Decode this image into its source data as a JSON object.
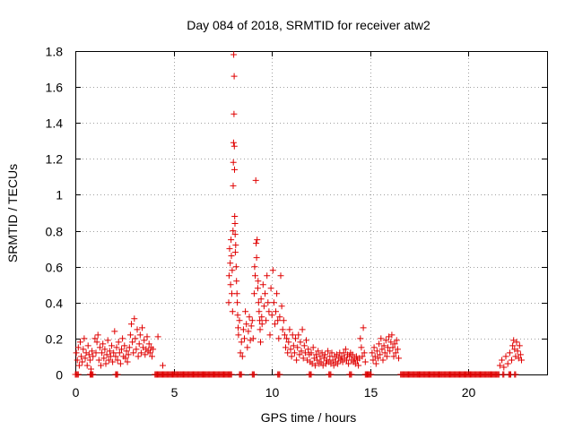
{
  "chart_data": {
    "type": "scatter",
    "title": "Day 084 of 2018, SRMTID for receiver atw2",
    "xlabel": "GPS time / hours",
    "ylabel": "SRMTID / TECUs",
    "xlim": [
      0,
      24
    ],
    "ylim": [
      0,
      1.8
    ],
    "xticks": [
      0,
      5,
      10,
      15,
      20
    ],
    "yticks": [
      0,
      0.2,
      0.4,
      0.6,
      0.8,
      1,
      1.2,
      1.4,
      1.6,
      1.8
    ],
    "ytick_labels": [
      "0",
      "0.2",
      "0.4",
      "0.6",
      "0.8",
      "1",
      "1.2",
      "1.4",
      "1.6",
      "1.8"
    ],
    "grid": true,
    "marker": "+",
    "color": "#e00000",
    "series": [
      {
        "name": "atw2",
        "points": [
          [
            0.05,
            0.12
          ],
          [
            0.1,
            0.08
          ],
          [
            0.15,
            0.15
          ],
          [
            0.2,
            0.05
          ],
          [
            0.25,
            0.18
          ],
          [
            0.3,
            0.1
          ],
          [
            0.35,
            0.07
          ],
          [
            0.4,
            0.14
          ],
          [
            0.45,
            0.2
          ],
          [
            0.5,
            0.09
          ],
          [
            0.55,
            0.12
          ],
          [
            0.6,
            0.05
          ],
          [
            0.65,
            0.16
          ],
          [
            0.7,
            0.11
          ],
          [
            0.75,
            0.08
          ],
          [
            0.8,
            0.03
          ],
          [
            0.85,
            0.13
          ],
          [
            0.9,
            0.1
          ],
          [
            1.0,
            0.2
          ],
          [
            1.05,
            0.12
          ],
          [
            1.1,
            0.18
          ],
          [
            1.15,
            0.22
          ],
          [
            1.2,
            0.08
          ],
          [
            1.25,
            0.15
          ],
          [
            1.3,
            0.05
          ],
          [
            1.35,
            0.12
          ],
          [
            1.4,
            0.17
          ],
          [
            1.45,
            0.09
          ],
          [
            1.5,
            0.14
          ],
          [
            1.55,
            0.06
          ],
          [
            1.6,
            0.11
          ],
          [
            1.65,
            0.19
          ],
          [
            1.7,
            0.08
          ],
          [
            1.75,
            0.13
          ],
          [
            1.8,
            0.1
          ],
          [
            1.85,
            0.16
          ],
          [
            1.9,
            0.07
          ],
          [
            1.95,
            0.12
          ],
          [
            2.0,
            0.24
          ],
          [
            2.05,
            0.1
          ],
          [
            2.1,
            0.15
          ],
          [
            2.15,
            0.08
          ],
          [
            2.2,
            0.18
          ],
          [
            2.25,
            0.12
          ],
          [
            2.3,
            0.06
          ],
          [
            2.35,
            0.14
          ],
          [
            2.4,
            0.2
          ],
          [
            2.45,
            0.1
          ],
          [
            2.5,
            0.16
          ],
          [
            2.55,
            0.09
          ],
          [
            2.6,
            0.13
          ],
          [
            2.65,
            0.07
          ],
          [
            2.7,
            0.11
          ],
          [
            2.75,
            0.15
          ],
          [
            2.8,
            0.22
          ],
          [
            2.85,
            0.28
          ],
          [
            2.9,
            0.18
          ],
          [
            2.95,
            0.12
          ],
          [
            3.0,
            0.31
          ],
          [
            3.05,
            0.2
          ],
          [
            3.1,
            0.14
          ],
          [
            3.15,
            0.25
          ],
          [
            3.2,
            0.1
          ],
          [
            3.25,
            0.17
          ],
          [
            3.3,
            0.22
          ],
          [
            3.35,
            0.12
          ],
          [
            3.4,
            0.26
          ],
          [
            3.45,
            0.15
          ],
          [
            3.5,
            0.19
          ],
          [
            3.55,
            0.11
          ],
          [
            3.6,
            0.14
          ],
          [
            3.65,
            0.21
          ],
          [
            3.7,
            0.13
          ],
          [
            3.75,
            0.17
          ],
          [
            3.8,
            0.12
          ],
          [
            3.85,
            0.15
          ],
          [
            3.9,
            0.1
          ],
          [
            3.95,
            0.14
          ],
          [
            4.2,
            0.21
          ],
          [
            4.45,
            0.05
          ],
          [
            7.8,
            0.4
          ],
          [
            7.82,
            0.55
          ],
          [
            7.85,
            0.7
          ],
          [
            7.88,
            0.62
          ],
          [
            7.9,
            0.5
          ],
          [
            7.92,
            0.75
          ],
          [
            7.94,
            0.66
          ],
          [
            7.96,
            0.45
          ],
          [
            7.98,
            0.58
          ],
          [
            8.0,
            0.35
          ],
          [
            8.02,
            0.8
          ],
          [
            8.03,
            1.05
          ],
          [
            8.04,
            1.18
          ],
          [
            8.05,
            1.29
          ],
          [
            8.06,
            1.78
          ],
          [
            8.07,
            1.45
          ],
          [
            8.08,
            1.66
          ],
          [
            8.09,
            1.27
          ],
          [
            8.1,
            1.14
          ],
          [
            8.11,
            0.88
          ],
          [
            8.12,
            0.84
          ],
          [
            8.13,
            0.78
          ],
          [
            8.14,
            0.68
          ],
          [
            8.16,
            0.72
          ],
          [
            8.18,
            0.6
          ],
          [
            8.2,
            0.52
          ],
          [
            8.22,
            0.45
          ],
          [
            8.24,
            0.4
          ],
          [
            8.26,
            0.33
          ],
          [
            8.28,
            0.26
          ],
          [
            8.3,
            0.22
          ],
          [
            8.35,
            0.3
          ],
          [
            8.4,
            0.12
          ],
          [
            8.45,
            0.18
          ],
          [
            8.5,
            0.1
          ],
          [
            8.55,
            0.25
          ],
          [
            8.6,
            0.2
          ],
          [
            8.65,
            0.35
          ],
          [
            8.7,
            0.28
          ],
          [
            8.75,
            0.15
          ],
          [
            8.8,
            0.24
          ],
          [
            8.85,
            0.32
          ],
          [
            8.9,
            0.19
          ],
          [
            8.95,
            0.27
          ],
          [
            9.0,
            0.3
          ],
          [
            9.05,
            0.2
          ],
          [
            9.1,
            0.45
          ],
          [
            9.12,
            0.6
          ],
          [
            9.15,
            0.55
          ],
          [
            9.18,
            1.08
          ],
          [
            9.2,
            0.73
          ],
          [
            9.22,
            0.65
          ],
          [
            9.25,
            0.75
          ],
          [
            9.28,
            0.48
          ],
          [
            9.3,
            0.52
          ],
          [
            9.32,
            0.4
          ],
          [
            9.35,
            0.35
          ],
          [
            9.38,
            0.3
          ],
          [
            9.4,
            0.25
          ],
          [
            9.42,
            0.18
          ],
          [
            9.45,
            0.42
          ],
          [
            9.48,
            0.32
          ],
          [
            9.5,
            0.28
          ],
          [
            9.55,
            0.5
          ],
          [
            9.6,
            0.38
          ],
          [
            9.65,
            0.45
          ],
          [
            9.7,
            0.3
          ],
          [
            9.75,
            0.55
          ],
          [
            9.8,
            0.4
          ],
          [
            9.85,
            0.35
          ],
          [
            9.9,
            0.22
          ],
          [
            9.95,
            0.48
          ],
          [
            10.0,
            0.33
          ],
          [
            10.05,
            0.58
          ],
          [
            10.1,
            0.4
          ],
          [
            10.15,
            0.28
          ],
          [
            10.2,
            0.35
          ],
          [
            10.25,
            0.45
          ],
          [
            10.3,
            0.3
          ],
          [
            10.35,
            0.2
          ],
          [
            10.4,
            0.32
          ],
          [
            10.45,
            0.55
          ],
          [
            10.5,
            0.38
          ],
          [
            10.55,
            0.25
          ],
          [
            10.6,
            0.3
          ],
          [
            10.65,
            0.22
          ],
          [
            10.7,
            0.15
          ],
          [
            10.75,
            0.2
          ],
          [
            10.8,
            0.12
          ],
          [
            10.85,
            0.18
          ],
          [
            10.9,
            0.25
          ],
          [
            10.95,
            0.14
          ],
          [
            11.0,
            0.1
          ],
          [
            11.05,
            0.22
          ],
          [
            11.1,
            0.16
          ],
          [
            11.15,
            0.12
          ],
          [
            11.2,
            0.2
          ],
          [
            11.25,
            0.08
          ],
          [
            11.3,
            0.15
          ],
          [
            11.35,
            0.22
          ],
          [
            11.4,
            0.11
          ],
          [
            11.45,
            0.18
          ],
          [
            11.5,
            0.13
          ],
          [
            11.55,
            0.25
          ],
          [
            11.6,
            0.09
          ],
          [
            11.65,
            0.16
          ],
          [
            11.7,
            0.12
          ],
          [
            11.75,
            0.19
          ],
          [
            11.8,
            0.08
          ],
          [
            11.85,
            0.14
          ],
          [
            11.9,
            0.11
          ],
          [
            11.95,
            0.07
          ],
          [
            12.0,
            0.12
          ],
          [
            12.05,
            0.06
          ],
          [
            12.1,
            0.15
          ],
          [
            12.15,
            0.09
          ],
          [
            12.2,
            0.05
          ],
          [
            12.25,
            0.11
          ],
          [
            12.3,
            0.08
          ],
          [
            12.35,
            0.13
          ],
          [
            12.4,
            0.06
          ],
          [
            12.45,
            0.1
          ],
          [
            12.5,
            0.07
          ],
          [
            12.55,
            0.12
          ],
          [
            12.6,
            0.05
          ],
          [
            12.65,
            0.09
          ],
          [
            12.7,
            0.11
          ],
          [
            12.75,
            0.06
          ],
          [
            12.8,
            0.08
          ],
          [
            12.85,
            0.13
          ],
          [
            12.9,
            0.07
          ],
          [
            12.95,
            0.1
          ],
          [
            13.0,
            0.06
          ],
          [
            13.05,
            0.12
          ],
          [
            13.1,
            0.08
          ],
          [
            13.15,
            0.05
          ],
          [
            13.2,
            0.1
          ],
          [
            13.25,
            0.07
          ],
          [
            13.3,
            0.11
          ],
          [
            13.35,
            0.06
          ],
          [
            13.4,
            0.09
          ],
          [
            13.45,
            0.12
          ],
          [
            13.5,
            0.08
          ],
          [
            13.55,
            0.1
          ],
          [
            13.6,
            0.07
          ],
          [
            13.65,
            0.12
          ],
          [
            13.7,
            0.09
          ],
          [
            13.75,
            0.14
          ],
          [
            13.8,
            0.08
          ],
          [
            13.85,
            0.11
          ],
          [
            13.9,
            0.06
          ],
          [
            13.95,
            0.1
          ],
          [
            14.0,
            0.12
          ],
          [
            14.05,
            0.08
          ],
          [
            14.1,
            0.11
          ],
          [
            14.15,
            0.07
          ],
          [
            14.2,
            0.09
          ],
          [
            14.25,
            0.06
          ],
          [
            14.3,
            0.1
          ],
          [
            14.35,
            0.08
          ],
          [
            14.4,
            0.05
          ],
          [
            14.45,
            0.09
          ],
          [
            14.5,
            0.2
          ],
          [
            14.55,
            0.15
          ],
          [
            14.6,
            0.1
          ],
          [
            14.65,
            0.26
          ],
          [
            14.7,
            0.12
          ],
          [
            14.75,
            0.07
          ],
          [
            15.1,
            0.12
          ],
          [
            15.15,
            0.08
          ],
          [
            15.2,
            0.15
          ],
          [
            15.25,
            0.1
          ],
          [
            15.3,
            0.06
          ],
          [
            15.35,
            0.13
          ],
          [
            15.4,
            0.09
          ],
          [
            15.45,
            0.17
          ],
          [
            15.5,
            0.11
          ],
          [
            15.55,
            0.2
          ],
          [
            15.6,
            0.14
          ],
          [
            15.65,
            0.08
          ],
          [
            15.7,
            0.16
          ],
          [
            15.75,
            0.12
          ],
          [
            15.8,
            0.19
          ],
          [
            15.85,
            0.1
          ],
          [
            15.9,
            0.15
          ],
          [
            15.95,
            0.21
          ],
          [
            16.0,
            0.13
          ],
          [
            16.05,
            0.18
          ],
          [
            16.1,
            0.22
          ],
          [
            16.15,
            0.15
          ],
          [
            16.2,
            0.1
          ],
          [
            16.25,
            0.17
          ],
          [
            16.3,
            0.12
          ],
          [
            16.35,
            0.19
          ],
          [
            16.4,
            0.14
          ],
          [
            16.45,
            0.09
          ],
          [
            21.6,
            0.05
          ],
          [
            21.7,
            0.08
          ],
          [
            21.8,
            0.04
          ],
          [
            21.9,
            0.1
          ],
          [
            22.0,
            0.06
          ],
          [
            22.1,
            0.12
          ],
          [
            22.2,
            0.08
          ],
          [
            22.25,
            0.16
          ],
          [
            22.3,
            0.19
          ],
          [
            22.35,
            0.14
          ],
          [
            22.4,
            0.1
          ],
          [
            22.45,
            0.18
          ],
          [
            22.5,
            0.13
          ],
          [
            22.55,
            0.09
          ],
          [
            22.6,
            0.16
          ],
          [
            22.65,
            0.11
          ],
          [
            22.7,
            0.08
          ]
        ],
        "zero_ranges": [
          [
            0.0,
            0.15
          ],
          [
            0.75,
            0.9
          ],
          [
            2.05,
            2.15
          ],
          [
            4.05,
            7.95
          ],
          [
            8.35,
            8.45
          ],
          [
            9.0,
            9.1
          ],
          [
            10.3,
            10.4
          ],
          [
            11.9,
            12.0
          ],
          [
            12.9,
            13.0
          ],
          [
            13.95,
            14.05
          ],
          [
            14.75,
            15.05
          ],
          [
            16.55,
            21.55
          ],
          [
            21.75,
            21.8
          ],
          [
            22.05,
            22.15
          ],
          [
            22.35,
            22.4
          ]
        ]
      }
    ]
  }
}
